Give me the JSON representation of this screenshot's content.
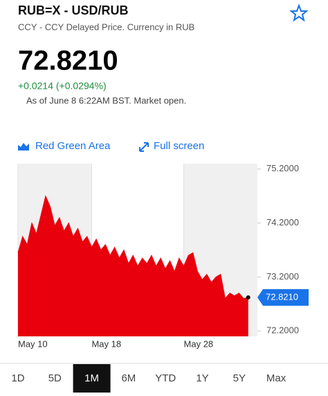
{
  "header": {
    "title": "RUB=X - USD/RUB",
    "subtitle": "CCY - CCY Delayed Price. Currency in RUB",
    "price": "72.8210",
    "change": "+0.0214 (+0.0294%)",
    "as_of": "As of June 8 6:22AM BST. Market open."
  },
  "controls": {
    "chart_style": "Red Green Area",
    "full_screen": "Full screen"
  },
  "chart_data": {
    "type": "area",
    "color": "#e8000d",
    "x": [
      10,
      10.5,
      11,
      11.5,
      12,
      12.5,
      13,
      13.5,
      14,
      14.5,
      15,
      15.5,
      16,
      16.5,
      17,
      17.5,
      18,
      18.5,
      19,
      19.5,
      20,
      20.5,
      21,
      21.5,
      22,
      22.5,
      23,
      23.5,
      24,
      24.5,
      25,
      25.5,
      26,
      26.5,
      27,
      27.5,
      28,
      28.5,
      29,
      29.5,
      30,
      30.5,
      31,
      31.5,
      32,
      32.5,
      33,
      33.5,
      34,
      34.5,
      35
    ],
    "values": [
      73.65,
      73.95,
      73.8,
      74.2,
      74.0,
      74.35,
      74.7,
      74.5,
      74.15,
      74.3,
      74.05,
      74.2,
      73.95,
      74.1,
      73.85,
      73.95,
      73.75,
      73.9,
      73.7,
      73.8,
      73.6,
      73.75,
      73.55,
      73.7,
      73.45,
      73.6,
      73.4,
      73.55,
      73.45,
      73.6,
      73.4,
      73.55,
      73.35,
      73.5,
      73.3,
      73.55,
      73.4,
      73.6,
      73.65,
      73.3,
      73.15,
      73.25,
      73.1,
      73.2,
      73.25,
      72.8,
      72.9,
      72.85,
      72.9,
      72.8,
      72.821
    ],
    "current_label": "72.8210",
    "xlim": [
      10,
      36
    ],
    "xticks": [
      {
        "value": 10,
        "label": "May 10"
      },
      {
        "value": 18,
        "label": "May 18"
      },
      {
        "value": 28,
        "label": "May 28"
      }
    ],
    "ylim": [
      72.1,
      75.3
    ],
    "yticks": [
      {
        "value": 72.2,
        "label": "72.2000"
      },
      {
        "value": 73.2,
        "label": "73.2000"
      },
      {
        "value": 74.2,
        "label": "74.2000"
      },
      {
        "value": 75.2,
        "label": "75.2000"
      }
    ]
  },
  "tabs": {
    "items": [
      "1D",
      "5D",
      "1M",
      "6M",
      "YTD",
      "1Y",
      "5Y",
      "Max"
    ],
    "selected": 2
  }
}
